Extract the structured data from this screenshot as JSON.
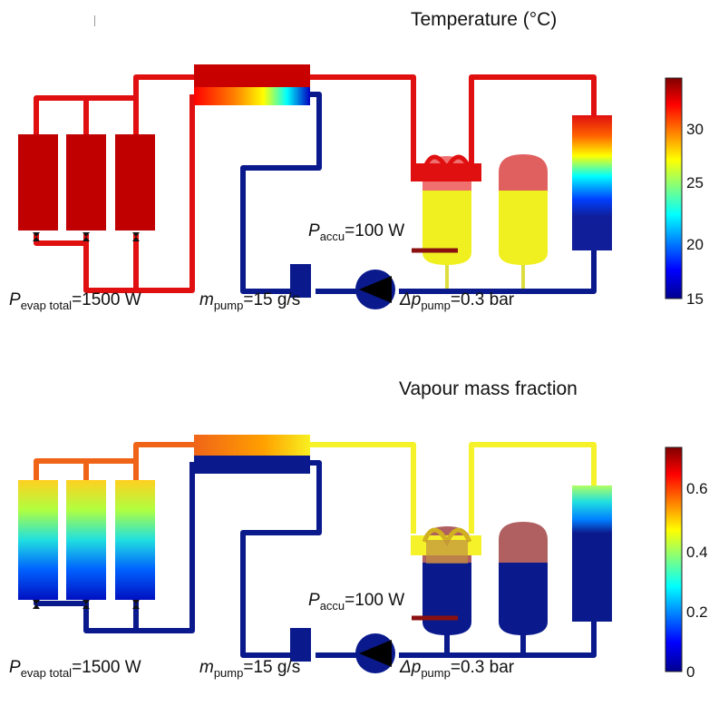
{
  "panels": [
    {
      "title": "Temperature (°C)",
      "labels": {
        "evap_sym": "P",
        "evap_sub": "evap total",
        "evap_val": "=1500 W",
        "mpump_sym": "m",
        "mpump_sub": "pump",
        "mpump_val": "=15 g/s",
        "dp_sym": "Δp",
        "dp_sub": "pump",
        "dp_val": "=0.3 bar",
        "accu_sym": "P",
        "accu_sub": "accu",
        "accu_val": "=100 W"
      },
      "colorbar_ticks": [
        "30",
        "25",
        "20",
        "15"
      ]
    },
    {
      "title": "Vapour mass fraction",
      "labels": {
        "evap_sym": "P",
        "evap_sub": "evap total",
        "evap_val": "=1500 W",
        "mpump_sym": "m",
        "mpump_sub": "pump",
        "mpump_val": "=15 g/s",
        "dp_sym": "Δp",
        "dp_sub": "pump",
        "dp_val": "=0.3 bar",
        "accu_sym": "P",
        "accu_sub": "accu",
        "accu_val": "=100 W"
      },
      "colorbar_ticks": [
        "0.6",
        "0.4",
        "0.2",
        "0"
      ]
    }
  ],
  "colors": {
    "hot_line": "#e01010",
    "cold_line": "#0a1a8c",
    "vapour_line": "#f5f22a",
    "vapour_orange": "#f06418",
    "accu_level": "#8b1010"
  }
}
